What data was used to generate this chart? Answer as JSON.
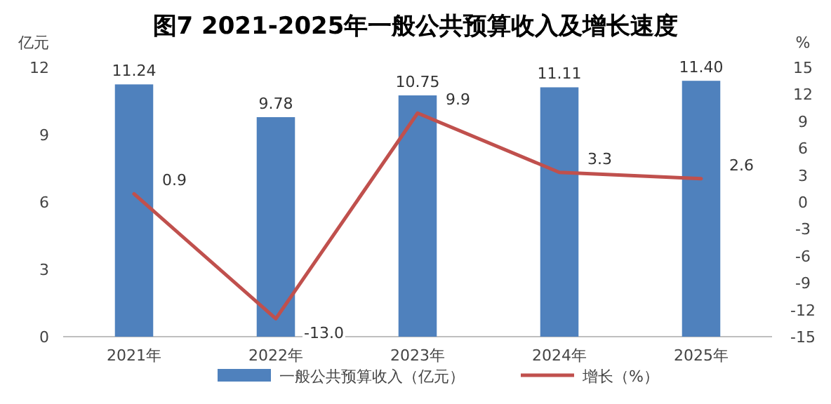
{
  "chart_data": {
    "type": "bar",
    "title": "图7 2021-2025年一般公共预算收入及增长速度",
    "ylabel": "亿元",
    "y2label": "%",
    "categories": [
      "2021年",
      "2022年",
      "2023年",
      "2024年",
      "2025年"
    ],
    "series": [
      {
        "name": "一般公共预算收入（亿元）",
        "color": "#4f81bd",
        "values": [
          11.24,
          9.78,
          10.75,
          11.11,
          11.4
        ],
        "value_labels": [
          "11.24",
          "9.78",
          "10.75",
          "11.11",
          "11.40"
        ]
      },
      {
        "name": "增长（%）",
        "type": "line",
        "axis": "y2",
        "color": "#c0504d",
        "values": [
          0.9,
          -13.0,
          9.9,
          3.3,
          2.6
        ],
        "value_labels": [
          "0.9",
          "-13.0",
          "9.9",
          "3.3",
          "2.6"
        ]
      }
    ],
    "ylim": [
      0,
      12
    ],
    "yticks": [
      0,
      3,
      6,
      9,
      12
    ],
    "y2lim": [
      -15,
      15
    ],
    "y2ticks": [
      -15,
      -12,
      -9,
      -6,
      -3,
      0,
      3,
      6,
      9,
      12,
      15
    ],
    "legend": "bottom"
  }
}
